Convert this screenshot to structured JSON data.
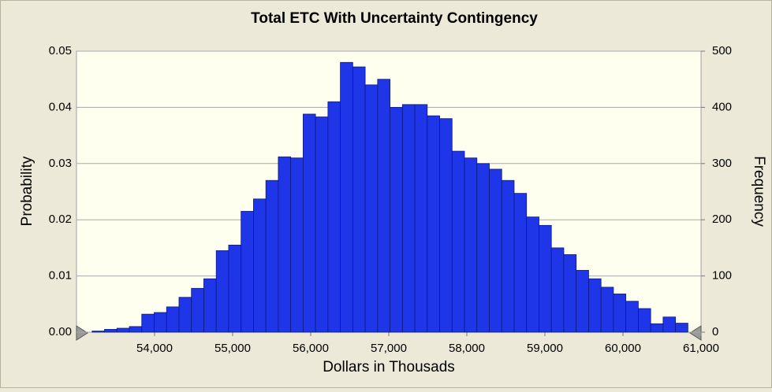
{
  "chart_data": {
    "type": "histogram",
    "title": "Total ETC With Uncertainty Contingency",
    "x_label": "Dollars in Thousads",
    "y_label": "Probability",
    "y2_label": "Frequency",
    "bins": [
      53200,
      53359,
      53518,
      53677,
      53836,
      53995,
      54154,
      54313,
      54472,
      54631,
      54790,
      54949,
      55108,
      55267,
      55426,
      55585,
      55744,
      55903,
      56062,
      56221,
      56380,
      56539,
      56698,
      56857,
      57016,
      57175,
      57334,
      57493,
      57652,
      57811,
      57970,
      58129,
      58288,
      58447,
      58606,
      58765,
      58924,
      59083,
      59242,
      59401,
      59560,
      59719,
      59878,
      60037,
      60196,
      60355,
      60514,
      60673,
      60832
    ],
    "series": [
      {
        "name": "Frequency",
        "color": "#1f35e8",
        "axis": "y2",
        "values": [
          2,
          5,
          7,
          10,
          32,
          35,
          45,
          62,
          78,
          95,
          145,
          155,
          215,
          237,
          270,
          312,
          310,
          388,
          383,
          410,
          480,
          472,
          440,
          450,
          400,
          405,
          405,
          385,
          380,
          322,
          310,
          300,
          290,
          270,
          247,
          205,
          190,
          150,
          138,
          110,
          95,
          80,
          68,
          55,
          42,
          15,
          27,
          16
        ]
      }
    ],
    "xlim": [
      53000,
      61000
    ],
    "xticks": [
      {
        "value": 54000,
        "label": "54,000"
      },
      {
        "value": 55000,
        "label": "55,000"
      },
      {
        "value": 56000,
        "label": "56,000"
      },
      {
        "value": 57000,
        "label": "57,000"
      },
      {
        "value": 58000,
        "label": "58,000"
      },
      {
        "value": 59000,
        "label": "59,000"
      },
      {
        "value": 60000,
        "label": "60,000"
      },
      {
        "value": 61000,
        "label": "61,000"
      }
    ],
    "ylim": [
      0,
      0.05
    ],
    "yticks": [
      {
        "value": 0,
        "label": "0.00"
      },
      0.01,
      0.02,
      0.03,
      0.04,
      0.05
    ],
    "y2lim": [
      0,
      500
    ],
    "y2ticks": [
      0,
      100,
      200,
      300,
      400,
      500
    ],
    "grid": true
  }
}
